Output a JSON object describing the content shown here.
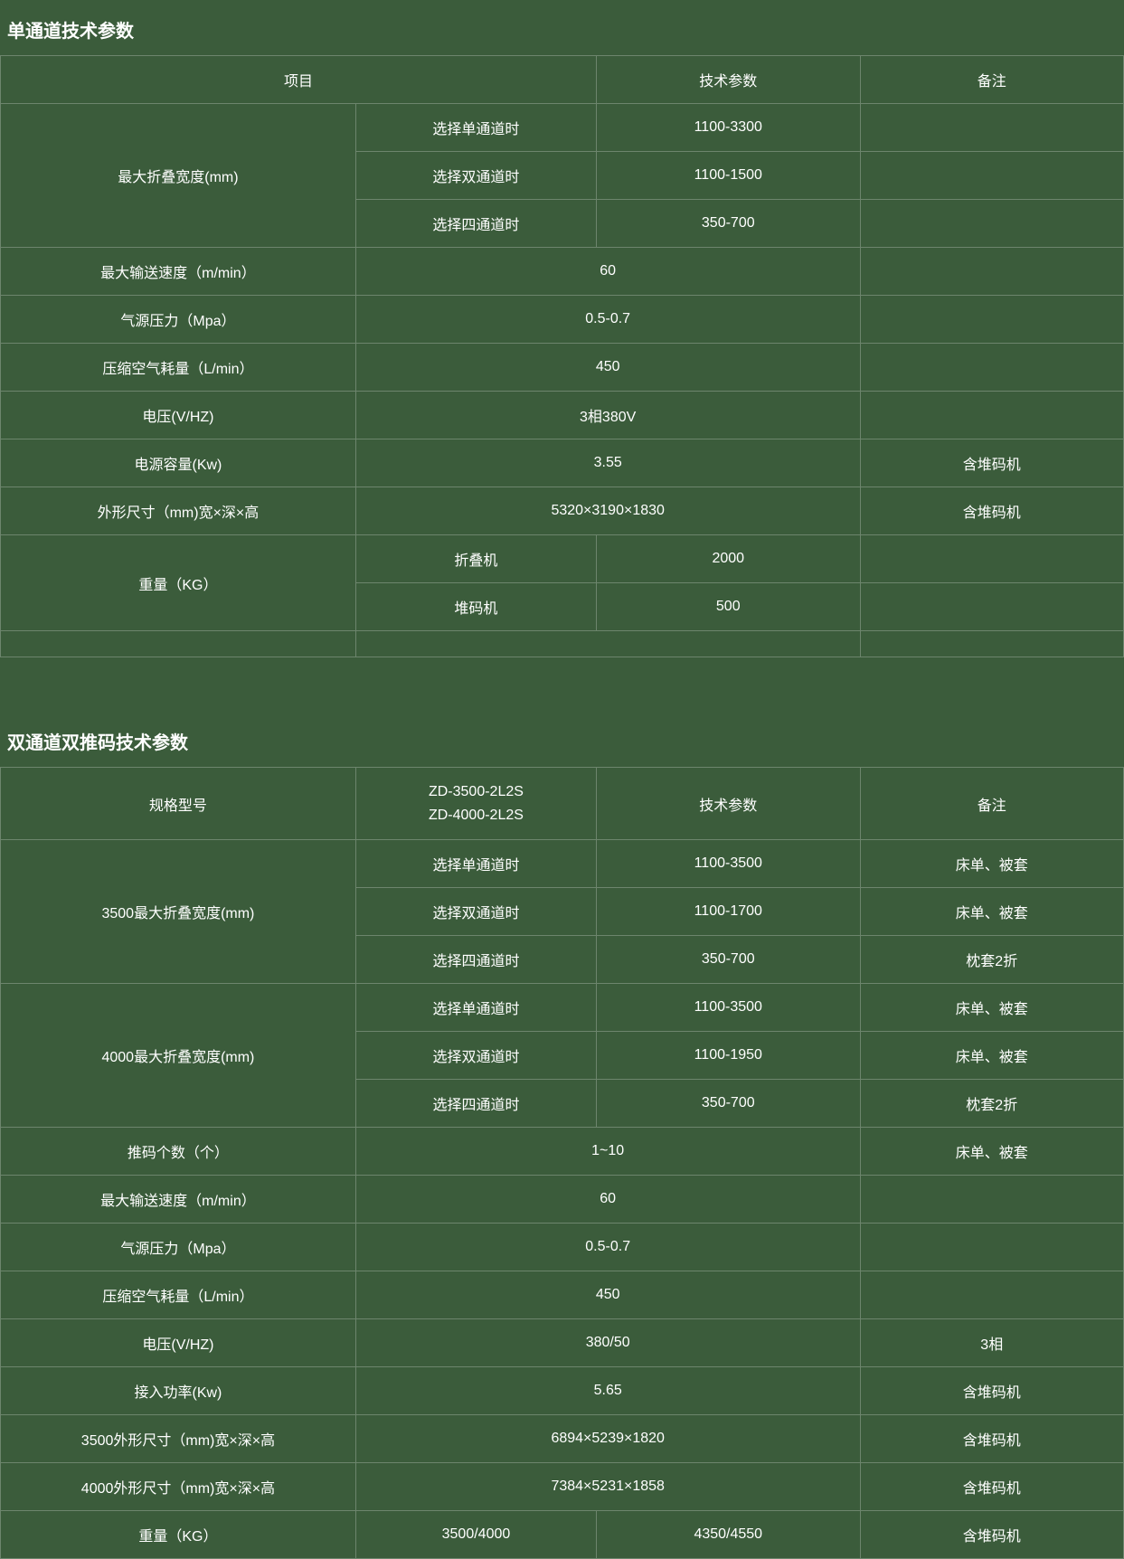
{
  "colors": {
    "background": "#3b5c3b",
    "border": "#6d856d",
    "text": "#ffffff"
  },
  "table1": {
    "title": "单通道技术参数",
    "headers": {
      "item": "项目",
      "param": "技术参数",
      "note": "备注"
    },
    "rows": {
      "r1": {
        "item": "最大折叠宽度(mm)",
        "sub1": "选择单通道时",
        "val1": "1100-3300",
        "note1": "",
        "sub2": "选择双通道时",
        "val2": "1100-1500",
        "note2": "",
        "sub3": "选择四通道时",
        "val3": "350-700",
        "note3": ""
      },
      "r2": {
        "item": "最大输送速度（m/min）",
        "val": "60",
        "note": ""
      },
      "r3": {
        "item": "气源压力（Mpa）",
        "val": "0.5-0.7",
        "note": ""
      },
      "r4": {
        "item": "压缩空气耗量（L/min）",
        "val": "450",
        "note": ""
      },
      "r5": {
        "item": "电压(V/HZ)",
        "val": "3相380V",
        "note": ""
      },
      "r6": {
        "item": "电源容量(Kw)",
        "val": "3.55",
        "note": "含堆码机"
      },
      "r7": {
        "item": "外形尺寸（mm)宽×深×高",
        "val": "5320×3190×1830",
        "note": "含堆码机"
      },
      "r8": {
        "item": "重量（KG）",
        "sub1": "折叠机",
        "val1": "2000",
        "note1": "",
        "sub2": "堆码机",
        "val2": "500",
        "note2": ""
      },
      "r9": {
        "item": "",
        "val": "",
        "note": ""
      }
    }
  },
  "table2": {
    "title": "双通道双推码技术参数",
    "headers": {
      "model": "规格型号",
      "model_vals_line1": "ZD-3500-2L2S",
      "model_vals_line2": "ZD-4000-2L2S",
      "param": "技术参数",
      "note": "备注"
    },
    "rows": {
      "r1": {
        "item": "3500最大折叠宽度(mm)",
        "sub1": "选择单通道时",
        "val1": "1100-3500",
        "note1": "床单、被套",
        "sub2": "选择双通道时",
        "val2": "1100-1700",
        "note2": "床单、被套",
        "sub3": "选择四通道时",
        "val3": "350-700",
        "note3": "枕套2折"
      },
      "r2": {
        "item": "4000最大折叠宽度(mm)",
        "sub1": "选择单通道时",
        "val1": "1100-3500",
        "note1": "床单、被套",
        "sub2": "选择双通道时",
        "val2": "1100-1950",
        "note2": "床单、被套",
        "sub3": "选择四通道时",
        "val3": "350-700",
        "note3": "枕套2折"
      },
      "r3": {
        "item": "推码个数（个）",
        "val": "1~10",
        "note": "床单、被套"
      },
      "r4": {
        "item": "最大输送速度（m/min）",
        "val": "60",
        "note": ""
      },
      "r5": {
        "item": "气源压力（Mpa）",
        "val": "0.5-0.7",
        "note": ""
      },
      "r6": {
        "item": "压缩空气耗量（L/min）",
        "val": "450",
        "note": ""
      },
      "r7": {
        "item": "电压(V/HZ)",
        "val": "380/50",
        "note": "3相"
      },
      "r8": {
        "item": "接入功率(Kw)",
        "val": "5.65",
        "note": "含堆码机"
      },
      "r9": {
        "item": "3500外形尺寸（mm)宽×深×高",
        "val": "6894×5239×1820",
        "note": "含堆码机"
      },
      "r10": {
        "item": "4000外形尺寸（mm)宽×深×高",
        "val": "7384×5231×1858",
        "note": "含堆码机"
      },
      "r11": {
        "item": "重量（KG）",
        "sub": "3500/4000",
        "val": "4350/4550",
        "note": "含堆码机"
      }
    }
  }
}
